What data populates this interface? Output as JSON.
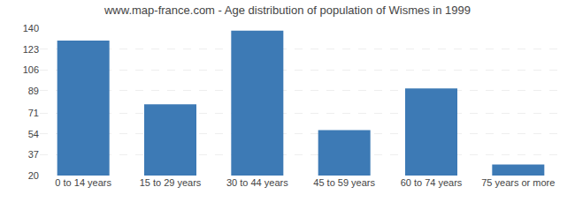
{
  "chart_data": {
    "type": "bar",
    "title": "www.map-france.com - Age distribution of population of Wismes in 1999",
    "categories": [
      "0 to 14 years",
      "15 to 29 years",
      "30 to 44 years",
      "45 to 59 years",
      "60 to 74 years",
      "75 years or more"
    ],
    "values": [
      130,
      78,
      138,
      57,
      91,
      29
    ],
    "color": "#3d7ab5",
    "ylim": [
      20,
      140
    ],
    "yticks": [
      20,
      37,
      54,
      71,
      89,
      106,
      123,
      140
    ],
    "grid": true
  }
}
